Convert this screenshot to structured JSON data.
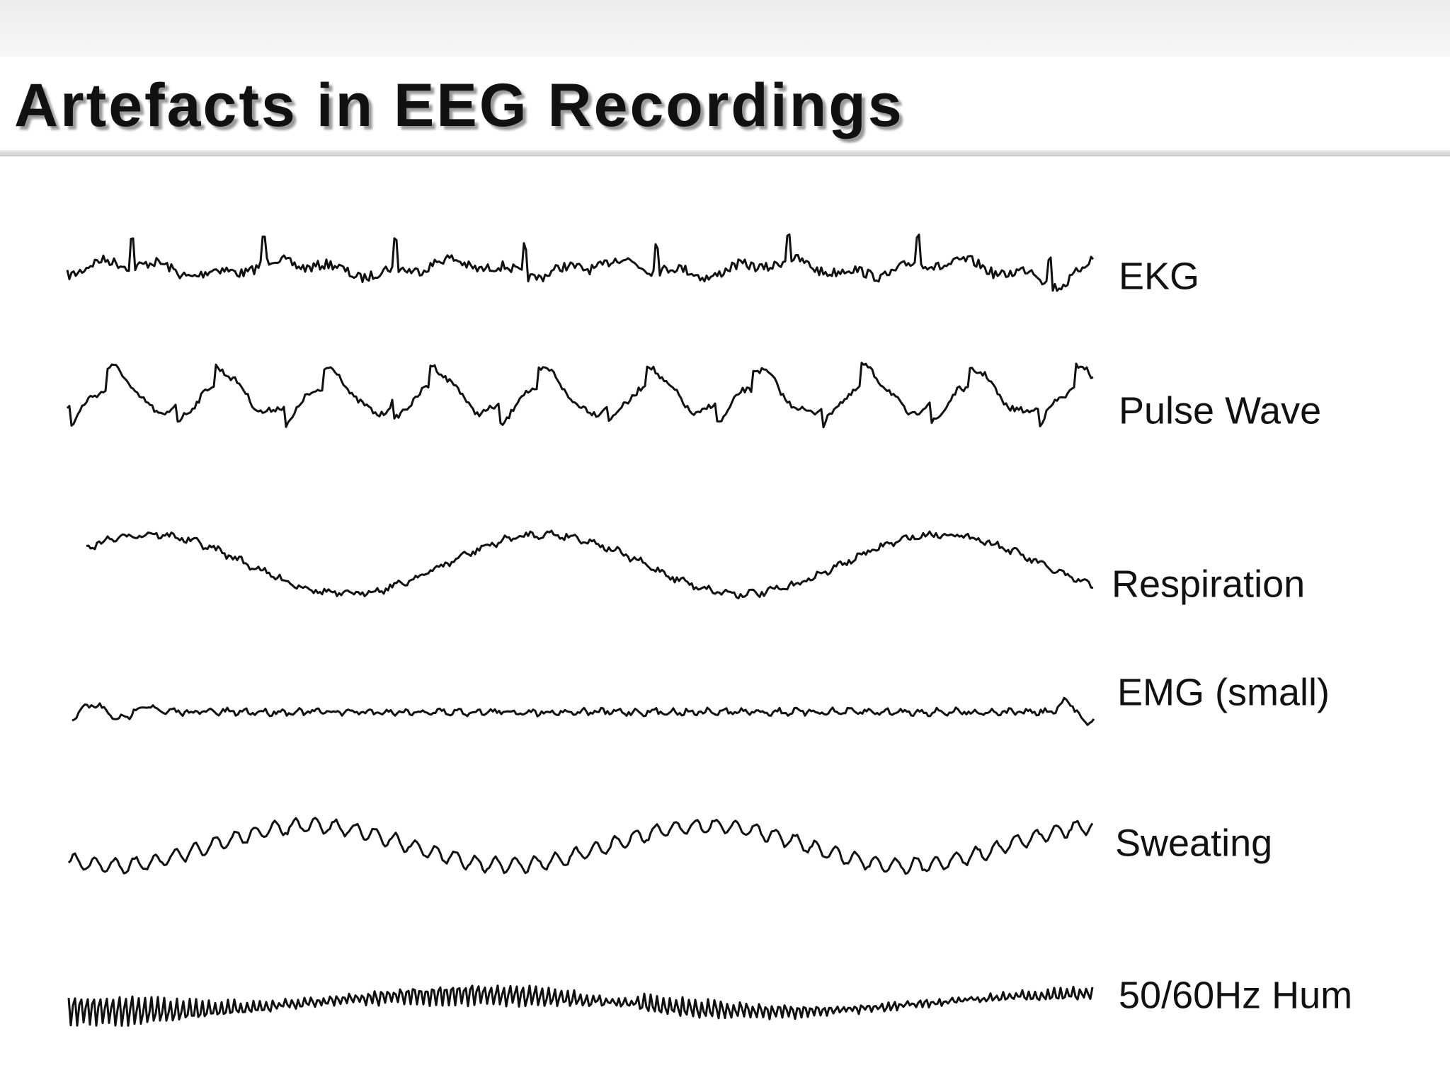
{
  "header": {
    "title": "Artefacts in EEG Recordings"
  },
  "traces": [
    {
      "label": "EKG"
    },
    {
      "label": "Pulse Wave"
    },
    {
      "label": "Respiration"
    },
    {
      "label": "EMG (small)"
    },
    {
      "label": "Sweating"
    },
    {
      "label": "50/60Hz Hum"
    }
  ]
}
